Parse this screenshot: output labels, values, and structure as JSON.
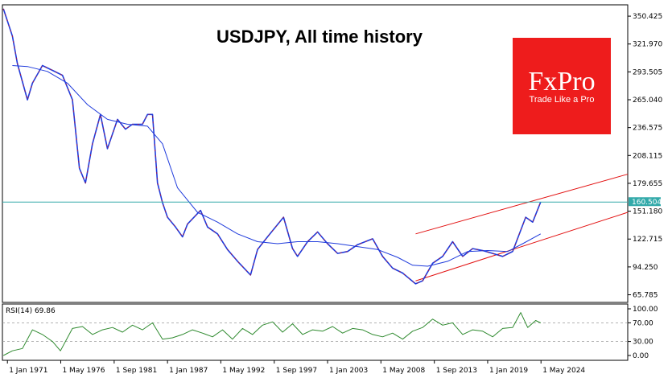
{
  "chart_data": [
    {
      "type": "line",
      "title": "USDJPY, All time history",
      "price_axis_ticks": [
        "350.425",
        "321.970",
        "293.505",
        "265.040",
        "236.575",
        "208.115",
        "179.655",
        "151.180",
        "122.715",
        "94.250",
        "65.785"
      ],
      "price_tick_values": [
        350.425,
        321.97,
        293.505,
        265.04,
        236.575,
        208.115,
        179.655,
        151.18,
        122.715,
        94.25,
        65.785
      ],
      "ylim": [
        58,
        362
      ],
      "x_ticks": [
        "1 Jan 1971",
        "1 May 1976",
        "1 Sep 1981",
        "1 Jan 1987",
        "1 May 1992",
        "1 Sep 1997",
        "1 Jan 2003",
        "1 May 2008",
        "1 Sep 2013",
        "1 Jan 2019",
        "1 May 2024"
      ],
      "x_tick_years": [
        1971,
        1976.33,
        1981.67,
        1987,
        1992.33,
        1997.67,
        2003,
        2008.33,
        2013.67,
        2019,
        2024.33
      ],
      "xlim": [
        1970.5,
        2033
      ],
      "current_price": "160.504",
      "current_price_value": 160.5,
      "series": [
        {
          "role": "price",
          "color": "#1f3bdc",
          "x": [
            1970.6,
            1971.5,
            1972.0,
            1973.0,
            1973.5,
            1974.5,
            1975.5,
            1976.5,
            1977.5,
            1978.2,
            1978.8,
            1979.5,
            1980.3,
            1981.0,
            1982.0,
            1982.8,
            1983.5,
            1984.5,
            1985.0,
            1985.5,
            1986.0,
            1986.5,
            1987.0,
            1987.8,
            1988.5,
            1989.0,
            1990.3,
            1991.0,
            1992.0,
            1993.0,
            1994.0,
            1995.3,
            1996.0,
            1997.0,
            1998.6,
            1999.5,
            2000.0,
            2001.0,
            2002.0,
            2003.0,
            2004.0,
            2005.0,
            2006.0,
            2007.5,
            2008.5,
            2009.5,
            2010.5,
            2011.8,
            2012.5,
            2013.5,
            2014.5,
            2015.5,
            2016.5,
            2017.5,
            2018.5,
            2019.5,
            2020.5,
            2021.5,
            2022.8,
            2023.5,
            2024.3
          ],
          "values": [
            358,
            330,
            302,
            265,
            282,
            300,
            295,
            290,
            265,
            195,
            180,
            220,
            250,
            215,
            245,
            235,
            240,
            240,
            250,
            250,
            180,
            160,
            145,
            135,
            125,
            138,
            152,
            135,
            128,
            112,
            100,
            86,
            112,
            125,
            145,
            113,
            105,
            120,
            130,
            118,
            108,
            110,
            117,
            123,
            105,
            93,
            88,
            77,
            80,
            98,
            105,
            120,
            105,
            113,
            111,
            108,
            105,
            110,
            145,
            140,
            160.5
          ]
        },
        {
          "role": "moving_average",
          "color": "#1f3bdc",
          "x": [
            1971.5,
            1973.0,
            1975.0,
            1977.0,
            1979.0,
            1981.0,
            1983.0,
            1985.0,
            1986.5,
            1988.0,
            1990.0,
            1992.0,
            1994.0,
            1996.0,
            1998.0,
            2000.0,
            2002.0,
            2004.0,
            2006.0,
            2008.0,
            2010.0,
            2011.5,
            2013.0,
            2015.0,
            2017.0,
            2019.0,
            2021.0,
            2022.5,
            2024.3
          ],
          "values": [
            300,
            299,
            294,
            282,
            260,
            245,
            240,
            238,
            220,
            175,
            150,
            140,
            128,
            120,
            118,
            120,
            120,
            118,
            115,
            112,
            104,
            96,
            95,
            100,
            110,
            111,
            110,
            118,
            128
          ]
        }
      ],
      "channel": {
        "color": "#e21010",
        "upper": {
          "x": [
            2011.8,
            2033
          ],
          "values": [
            128,
            189
          ]
        },
        "lower": {
          "x": [
            2011.8,
            2033
          ],
          "values": [
            80,
            150
          ]
        }
      }
    },
    {
      "type": "line",
      "indicator": "RSI",
      "label": "RSI(14) 69.86",
      "ticks": [
        "100.00",
        "70.00",
        "30.00",
        "0.00"
      ],
      "tick_values": [
        100,
        70,
        30,
        0
      ],
      "ylim": [
        0,
        100
      ],
      "color": "#2f8a2f",
      "series": [
        {
          "x": [
            1970.6,
            1971.5,
            1972.5,
            1973.5,
            1974.5,
            1975.5,
            1976.3,
            1977.5,
            1978.5,
            1979.5,
            1980.5,
            1981.5,
            1982.5,
            1983.5,
            1984.5,
            1985.5,
            1986.5,
            1987.5,
            1988.5,
            1989.5,
            1990.5,
            1991.5,
            1992.5,
            1993.5,
            1994.5,
            1995.5,
            1996.5,
            1997.5,
            1998.5,
            1999.5,
            2000.5,
            2001.5,
            2002.5,
            2003.5,
            2004.5,
            2005.5,
            2006.5,
            2007.5,
            2008.5,
            2009.5,
            2010.5,
            2011.5,
            2012.5,
            2013.5,
            2014.5,
            2015.5,
            2016.5,
            2017.5,
            2018.5,
            2019.5,
            2020.5,
            2021.5,
            2022.3,
            2023.0,
            2023.8,
            2024.3
          ],
          "values": [
            0,
            10,
            15,
            55,
            45,
            30,
            10,
            58,
            62,
            45,
            55,
            60,
            50,
            65,
            55,
            70,
            35,
            38,
            45,
            55,
            48,
            40,
            55,
            35,
            58,
            45,
            65,
            72,
            50,
            68,
            45,
            55,
            52,
            62,
            48,
            58,
            55,
            45,
            40,
            48,
            35,
            52,
            60,
            78,
            65,
            70,
            45,
            55,
            52,
            40,
            58,
            60,
            92,
            60,
            75,
            69.86
          ]
        }
      ]
    }
  ],
  "logo": {
    "brand": "FxPro",
    "tagline": "Trade Like a Pro",
    "color": "#ee1c1c"
  }
}
